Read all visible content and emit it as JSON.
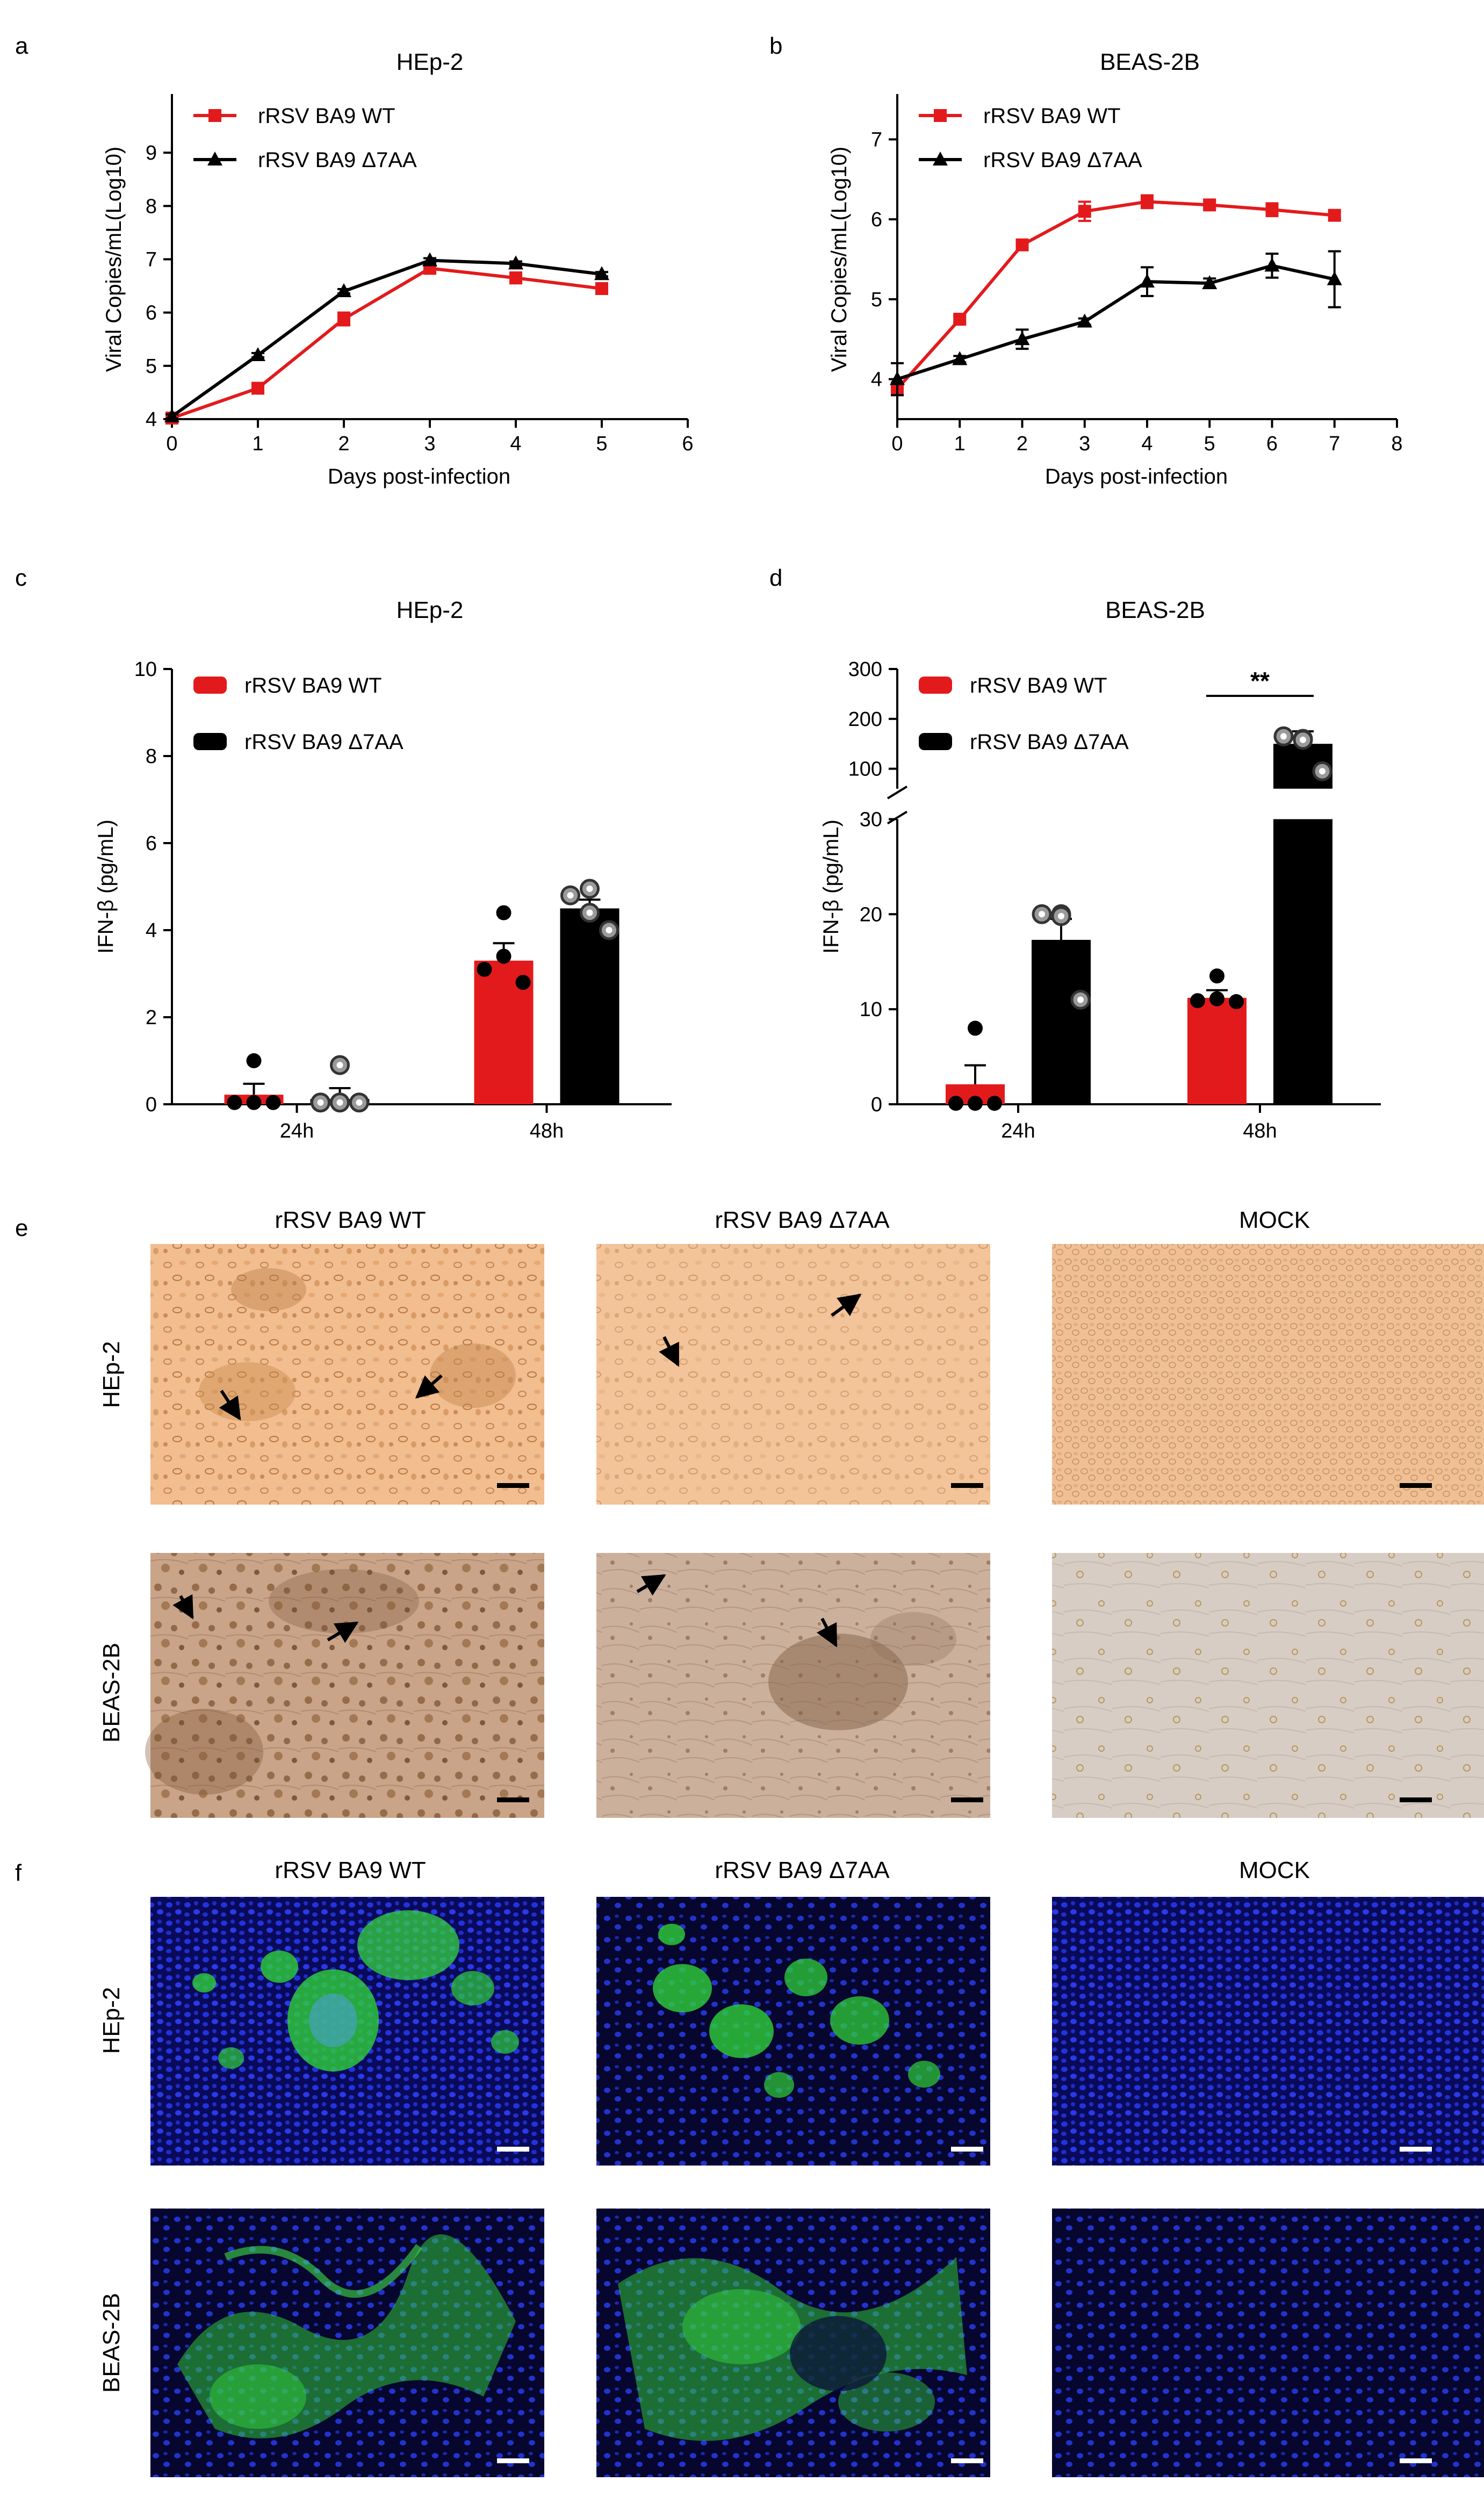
{
  "panel_labels": [
    "a",
    "b",
    "c",
    "d",
    "e",
    "f"
  ],
  "colors": {
    "wt": "#e31a1c",
    "d7aa": "#000000",
    "open_dot_fill": "#9a9a9a",
    "fluor_bg": "#0a0a5a",
    "fluor_nuclei": "#2233dd",
    "fluor_green": "#33dd33"
  },
  "chart_data": [
    {
      "id": "a",
      "type": "line",
      "title": "HEp-2",
      "xlabel": "Days post-infection",
      "ylabel": "Viral Copies/mL(Log10)",
      "xlim": [
        0,
        6
      ],
      "ylim": [
        4,
        10
      ],
      "xticks": [
        "0",
        "1",
        "2",
        "3",
        "4",
        "5",
        "6"
      ],
      "yticks": [
        "4",
        "5",
        "6",
        "7",
        "8",
        "9"
      ],
      "legend_position": "top-left",
      "series": [
        {
          "name": "rRSV BA9 WT",
          "marker": "square",
          "color": "#e31a1c",
          "x": [
            0,
            1,
            2,
            3,
            4,
            5
          ],
          "y": [
            4.02,
            4.58,
            5.88,
            6.83,
            6.65,
            6.45
          ],
          "err": [
            0.05,
            0.05,
            0.12,
            0.05,
            0.1,
            0.08
          ]
        },
        {
          "name": "rRSV BA9 Δ7AA",
          "marker": "triangle",
          "color": "#000000",
          "x": [
            0,
            1,
            2,
            3,
            4,
            5
          ],
          "y": [
            4.05,
            5.2,
            6.4,
            6.98,
            6.92,
            6.72
          ],
          "err": [
            0.04,
            0.04,
            0.04,
            0.04,
            0.04,
            0.04
          ]
        }
      ]
    },
    {
      "id": "b",
      "type": "line",
      "title": "BEAS-2B",
      "xlabel": "Days post-infection",
      "ylabel": "Viral Copies/mL(Log10)",
      "xlim": [
        0,
        8
      ],
      "ylim": [
        3.5,
        7.5
      ],
      "xticks": [
        "0",
        "1",
        "2",
        "3",
        "4",
        "5",
        "6",
        "7",
        "8"
      ],
      "yticks": [
        "4",
        "5",
        "6",
        "7"
      ],
      "legend_position": "top-left",
      "series": [
        {
          "name": "rRSV BA9 WT",
          "marker": "square",
          "color": "#e31a1c",
          "x": [
            0,
            1,
            2,
            3,
            4,
            5,
            6,
            7
          ],
          "y": [
            3.88,
            4.75,
            5.68,
            6.1,
            6.22,
            6.18,
            6.12,
            6.05
          ],
          "err": [
            0.08,
            0.04,
            0.05,
            0.12,
            0.08,
            0.05,
            0.08,
            0.05
          ]
        },
        {
          "name": "rRSV BA9 Δ7AA",
          "marker": "triangle",
          "color": "#000000",
          "x": [
            0,
            1,
            2,
            3,
            4,
            5,
            6,
            7
          ],
          "y": [
            4.0,
            4.25,
            4.5,
            4.72,
            5.22,
            5.2,
            5.42,
            5.25
          ],
          "err": [
            0.2,
            0.04,
            0.12,
            0.04,
            0.18,
            0.06,
            0.15,
            0.35
          ]
        }
      ]
    },
    {
      "id": "c",
      "type": "bar",
      "title": "HEp-2",
      "xlabel": "",
      "ylabel": "IFN-β (pg/mL)",
      "categories": [
        "24h",
        "48h"
      ],
      "ylim": [
        0,
        10
      ],
      "yticks": [
        "0",
        "2",
        "4",
        "6",
        "8",
        "10"
      ],
      "legend_position": "top-left",
      "series": [
        {
          "name": "rRSV BA9 WT",
          "color": "#e31a1c",
          "dots": "filled",
          "values": [
            0.22,
            3.3
          ],
          "err": [
            0.25,
            0.4
          ],
          "points": [
            [
              1.0,
              0.04,
              0.04,
              0.04
            ],
            [
              4.4,
              3.1,
              3.4,
              2.8
            ]
          ]
        },
        {
          "name": "rRSV BA9 Δ7AA",
          "color": "#000000",
          "dots": "open",
          "values": [
            0.12,
            4.5
          ],
          "err": [
            0.25,
            0.2
          ],
          "points": [
            [
              0.9,
              0.04,
              0.04,
              0.04
            ],
            [
              4.95,
              4.8,
              4.4,
              4.0
            ]
          ]
        }
      ]
    },
    {
      "id": "d",
      "type": "bar",
      "title": "BEAS-2B",
      "xlabel": "",
      "ylabel": "IFN-β (pg/mL)",
      "categories": [
        "24h",
        "48h"
      ],
      "y_axis_broken": true,
      "lower_segment": {
        "ylim": [
          0,
          30
        ],
        "yticks": [
          "0",
          "10",
          "20",
          "30"
        ]
      },
      "upper_segment": {
        "ylim": [
          60,
          300
        ],
        "yticks": [
          "100",
          "200",
          "300"
        ]
      },
      "legend_position": "top-left",
      "significance": {
        "label": "**",
        "category": "48h"
      },
      "series": [
        {
          "name": "rRSV BA9 WT",
          "color": "#e31a1c",
          "dots": "filled",
          "values": [
            2.1,
            11.2
          ],
          "err": [
            2.0,
            0.8
          ],
          "points": [
            [
              8.0,
              0.1,
              0.1,
              0.1
            ],
            [
              13.5,
              10.9,
              11.1,
              10.8
            ]
          ]
        },
        {
          "name": "rRSV BA9 Δ7AA",
          "color": "#000000",
          "dots": "open",
          "values": [
            17.3,
            150
          ],
          "err": [
            2.2,
            25
          ],
          "points": [
            [
              20.0,
              20.0,
              19.8,
              11.0
            ],
            [
              160,
              165,
              158,
              95
            ]
          ]
        }
      ]
    }
  ],
  "panel_e": {
    "column_titles": [
      "rRSV BA9 WT",
      "rRSV BA9 Δ7AA",
      "MOCK"
    ],
    "row_labels": [
      "HEp-2",
      "BEAS-2B"
    ]
  },
  "panel_f": {
    "column_titles": [
      "rRSV BA9 WT",
      "rRSV BA9 Δ7AA",
      "MOCK"
    ],
    "row_labels": [
      "HEp-2",
      "BEAS-2B"
    ]
  }
}
